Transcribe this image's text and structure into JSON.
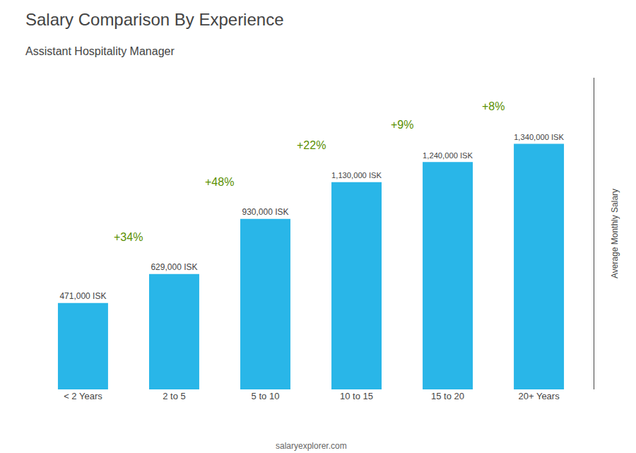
{
  "chart_data": {
    "type": "bar",
    "title": "Salary Comparison By Experience",
    "subtitle": "Assistant Hospitality Manager",
    "y_label": "Average Monthly Salary",
    "categories": [
      "< 2 Years",
      "2 to 5",
      "5 to 10",
      "10 to 15",
      "15 to 20",
      "20+ Years"
    ],
    "values": [
      471000,
      629000,
      930000,
      1130000,
      1240000,
      1340000
    ],
    "value_labels": [
      "471,000 ISK",
      "629,000 ISK",
      "930,000 ISK",
      "1,130,000 ISK",
      "1,240,000 ISK",
      "1,340,000 ISK"
    ],
    "data_labels": true,
    "color": "#29b6e8",
    "ylim": [
      0,
      1700000
    ],
    "tick_labels": "x",
    "grid": false,
    "annotations": [
      "+34%",
      "+48%",
      "+22%",
      "+9%",
      "+8%"
    ],
    "footer": "salaryexplorer.com"
  }
}
